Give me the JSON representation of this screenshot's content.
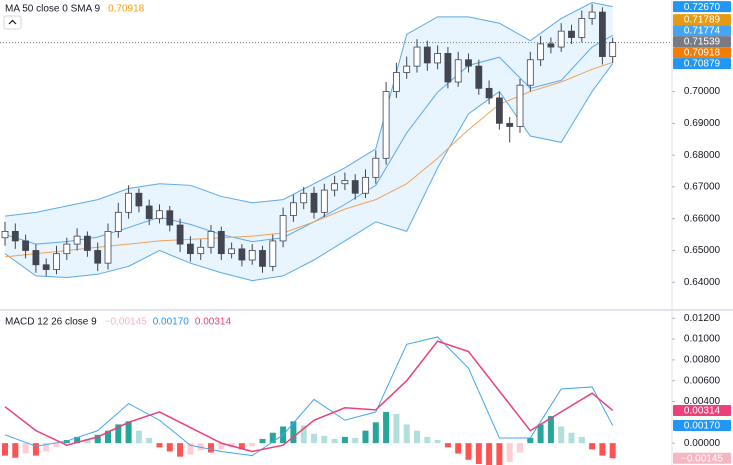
{
  "chart_data": [
    {
      "type": "candlestick",
      "legend_text": "MA 50 close 0 SMA 9",
      "legend_values": [
        {
          "value": 0.70918,
          "label": "0.70918",
          "color": "#f59e0b"
        }
      ],
      "open": [
        0.654,
        0.656,
        0.653,
        0.65,
        0.6455,
        0.644,
        0.649,
        0.652,
        0.6545,
        0.65,
        0.646,
        0.656,
        0.662,
        0.668,
        0.664,
        0.66,
        0.6625,
        0.658,
        0.652,
        0.649,
        0.651,
        0.656,
        0.649,
        0.6505,
        0.647,
        0.65,
        0.645,
        0.653,
        0.661,
        0.665,
        0.668,
        0.662,
        0.669,
        0.671,
        0.672,
        0.668,
        0.673,
        0.679,
        0.7,
        0.706,
        0.708,
        0.714,
        0.709,
        0.712,
        0.703,
        0.71,
        0.708,
        0.701,
        0.698,
        0.69,
        0.689,
        0.702,
        0.71,
        0.715,
        0.714,
        0.719,
        0.717,
        0.723,
        0.725,
        0.711
      ],
      "high": [
        0.659,
        0.6585,
        0.655,
        0.652,
        0.6475,
        0.6515,
        0.654,
        0.657,
        0.656,
        0.6525,
        0.6585,
        0.665,
        0.6705,
        0.6695,
        0.666,
        0.6645,
        0.664,
        0.66,
        0.6545,
        0.6535,
        0.658,
        0.6575,
        0.6525,
        0.652,
        0.652,
        0.6515,
        0.655,
        0.6635,
        0.6675,
        0.67,
        0.67,
        0.671,
        0.6735,
        0.6745,
        0.674,
        0.6755,
        0.6815,
        0.703,
        0.709,
        0.711,
        0.7165,
        0.716,
        0.7145,
        0.714,
        0.7125,
        0.712,
        0.71,
        0.7035,
        0.7,
        0.692,
        0.704,
        0.7125,
        0.7175,
        0.717,
        0.7215,
        0.721,
        0.7255,
        0.7275,
        0.7265,
        0.717
      ],
      "low": [
        0.6515,
        0.6505,
        0.6475,
        0.643,
        0.642,
        0.6425,
        0.647,
        0.65,
        0.648,
        0.6435,
        0.644,
        0.654,
        0.66,
        0.662,
        0.658,
        0.6585,
        0.656,
        0.6495,
        0.6465,
        0.647,
        0.649,
        0.647,
        0.6475,
        0.645,
        0.6455,
        0.643,
        0.6435,
        0.651,
        0.659,
        0.663,
        0.66,
        0.6605,
        0.667,
        0.669,
        0.666,
        0.6665,
        0.671,
        0.677,
        0.698,
        0.704,
        0.706,
        0.7065,
        0.707,
        0.701,
        0.7015,
        0.706,
        0.699,
        0.696,
        0.688,
        0.684,
        0.687,
        0.7,
        0.708,
        0.712,
        0.7125,
        0.715,
        0.7155,
        0.721,
        0.7085,
        0.709
      ],
      "close": [
        0.656,
        0.653,
        0.65,
        0.6455,
        0.644,
        0.649,
        0.652,
        0.6545,
        0.65,
        0.646,
        0.656,
        0.662,
        0.668,
        0.664,
        0.66,
        0.6625,
        0.658,
        0.652,
        0.649,
        0.651,
        0.656,
        0.649,
        0.6505,
        0.647,
        0.65,
        0.645,
        0.653,
        0.661,
        0.665,
        0.668,
        0.662,
        0.669,
        0.671,
        0.672,
        0.668,
        0.673,
        0.679,
        0.7,
        0.706,
        0.708,
        0.714,
        0.709,
        0.712,
        0.703,
        0.71,
        0.708,
        0.701,
        0.698,
        0.69,
        0.689,
        0.702,
        0.71,
        0.715,
        0.714,
        0.719,
        0.717,
        0.723,
        0.725,
        0.711,
        0.7154
      ],
      "candle_color": "#434651",
      "band": {
        "color": "#5aa9ea",
        "fill": "#2196f3",
        "x": [
          0,
          3,
          6,
          9,
          12,
          15,
          18,
          21,
          24,
          27,
          30,
          33,
          36,
          39,
          42,
          45,
          48,
          51,
          54,
          57,
          59
        ],
        "upper": [
          0.6608,
          0.662,
          0.664,
          0.666,
          0.6695,
          0.671,
          0.6705,
          0.667,
          0.665,
          0.666,
          0.671,
          0.676,
          0.682,
          0.718,
          0.7235,
          0.7235,
          0.7215,
          0.716,
          0.723,
          0.728,
          0.7267
        ],
        "lower": [
          0.649,
          0.642,
          0.6415,
          0.6425,
          0.645,
          0.65,
          0.646,
          0.643,
          0.6405,
          0.642,
          0.647,
          0.653,
          0.659,
          0.656,
          0.676,
          0.693,
          0.7,
          0.686,
          0.684,
          0.7,
          0.7088
        ]
      },
      "series": [
        {
          "color": "#5aa9ea",
          "x": [
            0,
            3,
            6,
            9,
            12,
            15,
            18,
            21,
            24,
            27,
            30,
            33,
            36,
            39,
            42,
            45,
            48,
            51,
            54,
            57,
            59
          ],
          "values": [
            0.655,
            0.652,
            0.6528,
            0.6542,
            0.6572,
            0.6605,
            0.6582,
            0.655,
            0.6528,
            0.654,
            0.659,
            0.6645,
            0.6705,
            0.687,
            0.6998,
            0.7082,
            0.7108,
            0.701,
            0.7035,
            0.714,
            0.7177
          ]
        },
        {
          "color": "#f0a35c",
          "x": [
            0,
            3,
            6,
            9,
            12,
            15,
            18,
            21,
            24,
            27,
            30,
            33,
            36,
            39,
            42,
            45,
            48,
            51,
            54,
            57,
            59
          ],
          "values": [
            0.648,
            0.649,
            0.65,
            0.651,
            0.652,
            0.653,
            0.6535,
            0.654,
            0.6545,
            0.6555,
            0.659,
            0.663,
            0.666,
            0.671,
            0.679,
            0.688,
            0.696,
            0.7,
            0.703,
            0.707,
            0.7092
          ]
        }
      ],
      "ylim": [
        0.6319,
        0.7288
      ],
      "yticks": [
        {
          "value": 0.64,
          "label": "0.64000"
        },
        {
          "value": 0.65,
          "label": "0.65000"
        },
        {
          "value": 0.66,
          "label": "0.66000"
        },
        {
          "value": 0.67,
          "label": "0.67000"
        },
        {
          "value": 0.68,
          "label": "0.68000"
        },
        {
          "value": 0.69,
          "label": "0.69000"
        },
        {
          "value": 0.7,
          "label": "0.70000"
        }
      ],
      "price_labels": [
        {
          "value": 0.7267,
          "label": "0.72670",
          "color": "#2196f3"
        },
        {
          "value": 0.71789,
          "label": "0.71789",
          "color": "#e69a14"
        },
        {
          "value": 0.71774,
          "label": "0.71774",
          "color": "#42a5f5"
        },
        {
          "value": 0.71539,
          "label": "0.71539",
          "color": "#787b86"
        },
        {
          "value": 0.70918,
          "label": "0.70918",
          "color": "#f57c00"
        },
        {
          "value": 0.70879,
          "label": "0.70879",
          "color": "#2196f3"
        }
      ],
      "last_price_index": 3,
      "grid": false
    },
    {
      "type": "macd",
      "legend_text": "MACD 12 26 close 9",
      "legend_values": [
        {
          "value": -0.00145,
          "label": "−0.00145",
          "color": "#f4b6c2"
        },
        {
          "value": 0.0017,
          "label": "0.00170",
          "color": "#2196f3"
        },
        {
          "value": 0.00314,
          "label": "0.00314",
          "color": "#ec407a"
        }
      ],
      "histogram": [
        -0.0012,
        -0.0014,
        -0.001,
        -0.0012,
        -0.0008,
        -0.0004,
        0.0003,
        0.0006,
        0.0004,
        0.0008,
        0.0012,
        0.0018,
        0.0021,
        0.0012,
        0.0005,
        -0.0004,
        -0.0008,
        -0.0013,
        -0.0011,
        -0.0007,
        -0.0009,
        -0.0006,
        -0.0004,
        -0.0006,
        -0.0003,
        0.0004,
        0.001,
        0.0016,
        0.0021,
        0.0017,
        0.0009,
        0.0007,
        0.0004,
        0.0006,
        0.0005,
        0.0012,
        0.002,
        0.003,
        0.0028,
        0.0018,
        0.0012,
        0.0006,
        0.0003,
        -0.0004,
        -0.001,
        -0.0016,
        -0.002,
        -0.0022,
        -0.0024,
        -0.0018,
        -0.0009,
        0.0005,
        0.0018,
        0.0026,
        0.0016,
        0.001,
        0.0006,
        -0.0006,
        -0.0012,
        -0.00145
      ],
      "histogram_colors": [
        "#26a69a",
        "#b2dfdb",
        "#ff5252",
        "#ffcdd2"
      ],
      "series": [
        {
          "color": "#42a5f5",
          "x": [
            0,
            3,
            6,
            9,
            12,
            15,
            18,
            21,
            24,
            27,
            30,
            33,
            36,
            39,
            42,
            45,
            48,
            51,
            54,
            57,
            59
          ],
          "values": [
            0.0008,
            -0.0003,
            0.0002,
            0.0012,
            0.0038,
            0.0022,
            -0.0002,
            -0.0008,
            -0.0012,
            0.0008,
            0.0042,
            0.0022,
            0.003,
            0.0095,
            0.0102,
            0.0072,
            0.0005,
            0.0005,
            0.0052,
            0.0054,
            0.0017
          ]
        },
        {
          "color": "#ec407a",
          "x": [
            0,
            3,
            6,
            9,
            12,
            15,
            18,
            21,
            24,
            27,
            30,
            33,
            36,
            39,
            42,
            45,
            48,
            51,
            54,
            57,
            59
          ],
          "values": [
            0.0035,
            0.0012,
            -0.0002,
            0.0006,
            0.002,
            0.003,
            0.0015,
            0.0,
            -0.0008,
            -0.0002,
            0.0022,
            0.0034,
            0.0032,
            0.006,
            0.0098,
            0.0088,
            0.005,
            0.0012,
            0.003,
            0.0048,
            0.00314
          ]
        }
      ],
      "ylim": [
        -0.0021,
        0.0126
      ],
      "yticks": [
        {
          "value": 0,
          "label": "0.00000"
        },
        {
          "value": 0.004,
          "label": "0.00400"
        },
        {
          "value": 0.006,
          "label": "0.00600"
        },
        {
          "value": 0.008,
          "label": "0.00800"
        },
        {
          "value": 0.01,
          "label": "0.01000"
        },
        {
          "value": 0.012,
          "label": "0.01200"
        }
      ],
      "price_labels": [
        {
          "value": 0.00314,
          "label": "0.00314",
          "color": "#ec407a"
        },
        {
          "value": 0.0017,
          "label": "0.00170",
          "color": "#2196f3"
        },
        {
          "value": -0.00145,
          "label": "−0.00145",
          "color": "#f4b6c2"
        }
      ],
      "grid": false
    }
  ]
}
